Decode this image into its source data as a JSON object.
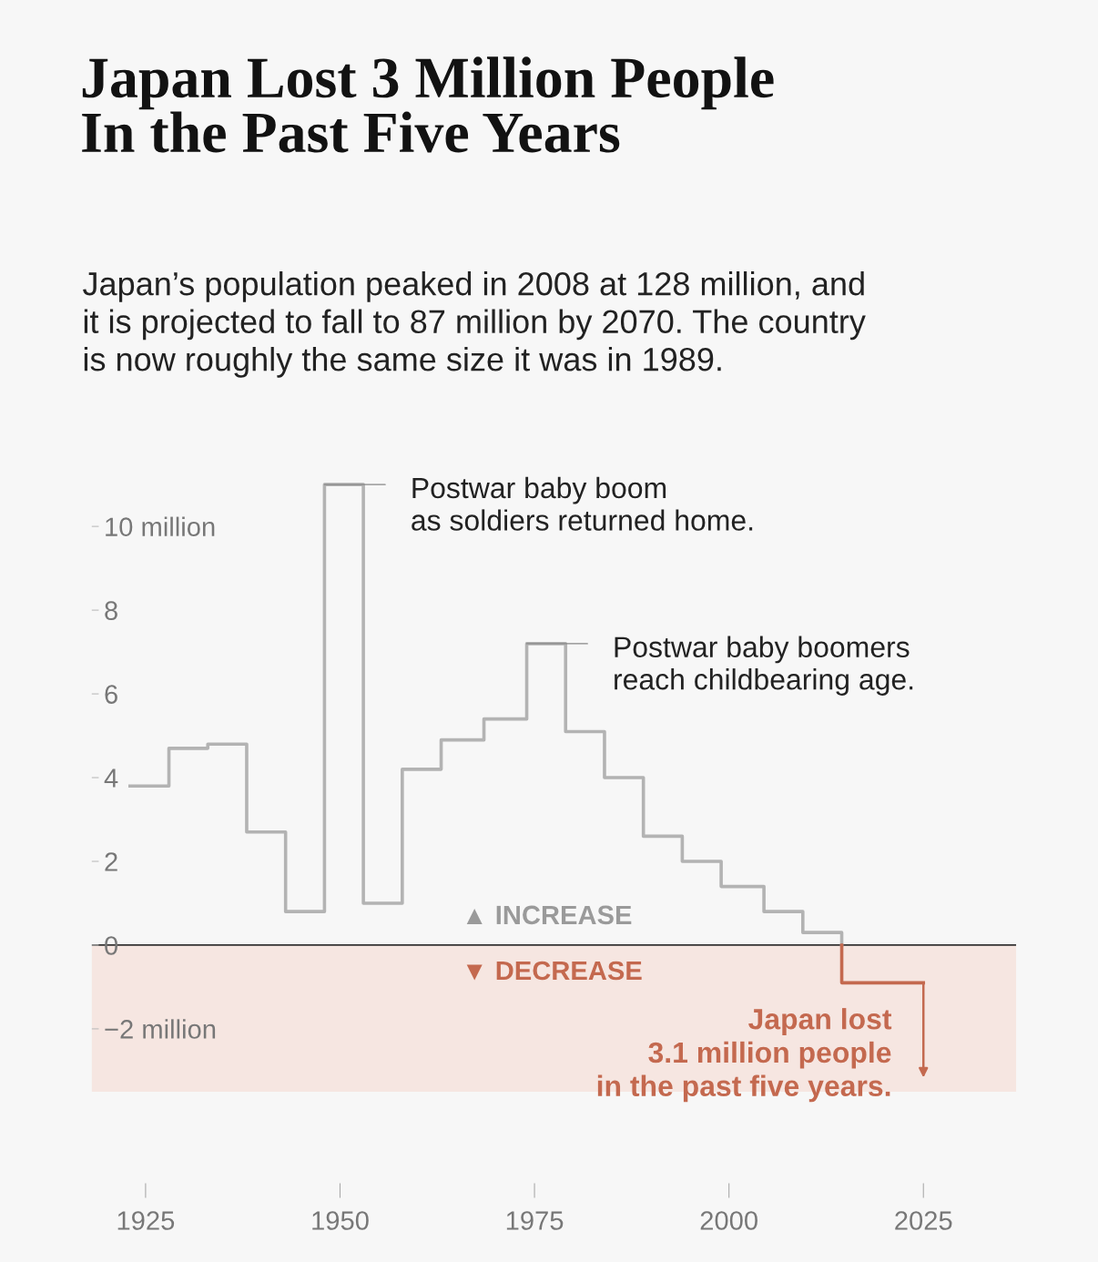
{
  "chart_data": {
    "type": "step",
    "title": "Japan Lost 3 Million People\nIn the Past Five Years",
    "subtitle": "Japan’s population peaked in 2008 at 128 million, and\nit is projected to fall to 87 million by 2070. The country\nis now roughly the same size it was in 1989.",
    "series": [
      {
        "color": "#b3b3b3",
        "x": [
          1923,
          1928,
          1933,
          1938,
          1943,
          1948,
          1953,
          1958,
          1963,
          1968.5,
          1974,
          1979,
          1984,
          1989,
          1994,
          1999,
          2004.5,
          2009.5,
          2014.5
        ],
        "values": [
          3.8,
          4.7,
          4.8,
          2.7,
          0.8,
          11.0,
          1.0,
          4.2,
          4.9,
          5.4,
          7.2,
          5.1,
          4.0,
          2.6,
          2.0,
          1.4,
          0.8,
          0.3,
          0
        ]
      },
      {
        "type": "line",
        "color": "#c4694f",
        "x": [
          2014.5,
          2014.5,
          2025
        ],
        "values": [
          0,
          -0.9,
          -0.9
        ]
      }
    ],
    "xlim": [
      1918,
      2037
    ],
    "xticks": [
      1925,
      1950,
      1975,
      2000,
      2025
    ],
    "ylim": [
      -3.5,
      11.3
    ],
    "yticks": [
      {
        "value": 10,
        "label": "10 million"
      },
      8,
      6,
      4,
      2,
      0,
      {
        "value": -2,
        "label": "−2 million"
      }
    ],
    "ref_lines": [
      {
        "axis": "y",
        "value": 0,
        "color": "#333333"
      }
    ],
    "bands": [
      {
        "axis": "y",
        "from": -3.5,
        "to": 0,
        "color": "#f6e6e1"
      }
    ],
    "annotations": [
      {
        "text": "Postwar baby boom\nas soldiers returned home.",
        "x": 1948,
        "y": 11.0
      },
      {
        "text": "Postwar baby boomers\nreach childbearing age.",
        "x": 1974,
        "y": 7.2
      },
      "▲ INCREASE",
      "▼ DECREASE",
      {
        "text": "Japan lost\n3.1 million people\nin the past five years.",
        "x": 2025,
        "y": -0.9
      }
    ],
    "grid": false
  }
}
